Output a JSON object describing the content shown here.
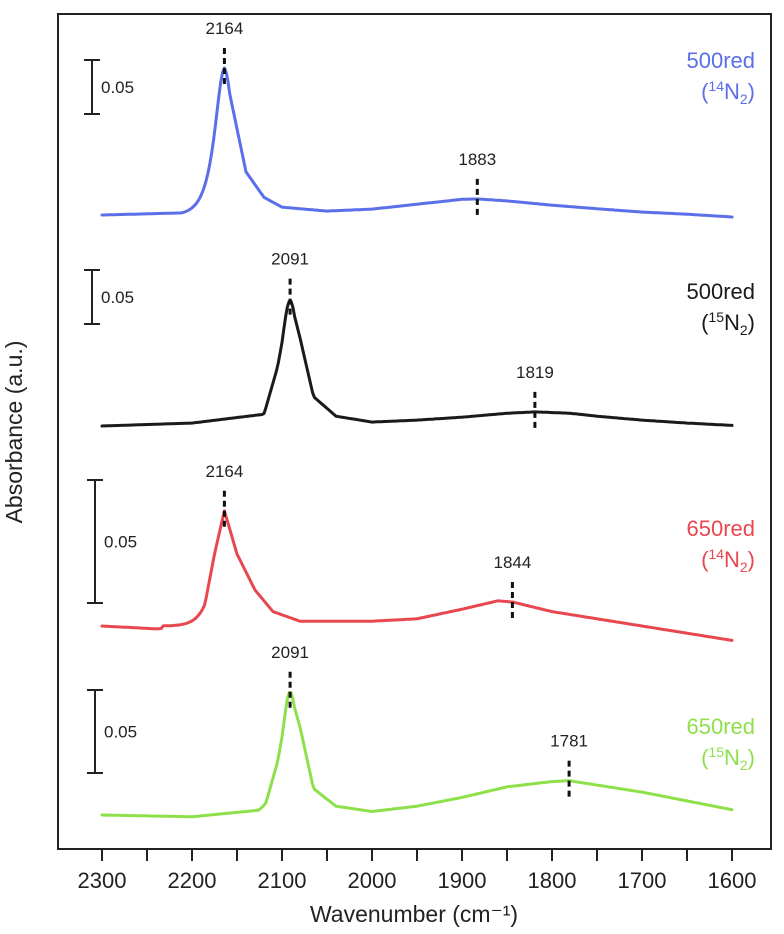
{
  "chart_data": {
    "type": "line",
    "xlabel": "Wavenumber (cm⁻¹)",
    "ylabel": "Absorbance (a.u.)",
    "xlim": [
      2350,
      1580
    ],
    "x_reversed": true,
    "x_ticks": [
      2300,
      2200,
      2100,
      2000,
      1900,
      1800,
      1700,
      1600
    ],
    "x_tick_labels": [
      "2300",
      "2200",
      "2100",
      "2000",
      "1900",
      "1800",
      "1700",
      "1600"
    ],
    "y_ticks_shown": false,
    "legend": "none (series names printed to the right of each trace)",
    "series": [
      {
        "name": "500red (14N2)",
        "name_main": "500red",
        "name_sub_open": "(",
        "name_sup": "14",
        "name_n": "N",
        "name_sub": "2",
        "name_sub_close": ")",
        "color": "#5a6fe8",
        "scale_bar_label": "0.05",
        "scale_bar_value": 0.05,
        "peaks": [
          {
            "x": 2164,
            "label": "2164",
            "height": 0.0745,
            "width": 14,
            "shape": 2.0
          },
          {
            "x": 1883,
            "label": "1883",
            "height": 0.008,
            "width": 85,
            "shape": 1.0
          }
        ],
        "points": [
          [
            2300,
            0.0
          ],
          [
            2200,
            0.0012
          ],
          [
            2184,
            0.01
          ],
          [
            2175,
            0.038
          ],
          [
            2164,
            0.075
          ],
          [
            2155,
            0.055
          ],
          [
            2140,
            0.022
          ],
          [
            2120,
            0.009
          ],
          [
            2100,
            0.004
          ],
          [
            2050,
            0.002
          ],
          [
            2000,
            0.003
          ],
          [
            1950,
            0.0055
          ],
          [
            1900,
            0.008
          ],
          [
            1883,
            0.0082
          ],
          [
            1850,
            0.0072
          ],
          [
            1800,
            0.005
          ],
          [
            1750,
            0.0032
          ],
          [
            1700,
            0.0015
          ],
          [
            1650,
            0.0004
          ],
          [
            1600,
            -0.001
          ]
        ]
      },
      {
        "name": "500red (15N2)",
        "name_main": "500red",
        "name_sub_open": "(",
        "name_sup": "15",
        "name_n": "N",
        "name_sub": "2",
        "name_sub_close": ")",
        "color": "#1a1a1a",
        "scale_bar_label": "0.05",
        "scale_bar_value": 0.05,
        "peaks": [
          {
            "x": 2091,
            "label": "2091",
            "height": 0.064,
            "width": 14,
            "shape": 2.0
          },
          {
            "x": 1819,
            "label": "1819",
            "height": 0.007,
            "width": 85,
            "shape": 1.0
          }
        ],
        "points": [
          [
            2300,
            0.0
          ],
          [
            2200,
            0.0015
          ],
          [
            2120,
            0.006
          ],
          [
            2105,
            0.03
          ],
          [
            2091,
            0.065
          ],
          [
            2080,
            0.045
          ],
          [
            2065,
            0.015
          ],
          [
            2040,
            0.005
          ],
          [
            2000,
            0.002
          ],
          [
            1950,
            0.003
          ],
          [
            1900,
            0.0045
          ],
          [
            1850,
            0.0065
          ],
          [
            1819,
            0.0072
          ],
          [
            1780,
            0.0065
          ],
          [
            1750,
            0.005
          ],
          [
            1700,
            0.003
          ],
          [
            1650,
            0.0015
          ],
          [
            1600,
            0.0003
          ]
        ]
      },
      {
        "name": "650red (14N2)",
        "name_main": "650red",
        "name_sub_open": "(",
        "name_sup": "14",
        "name_n": "N",
        "name_sub": "2",
        "name_sub_close": ")",
        "color": "#e8474f",
        "scale_bar_label": "0.05",
        "scale_bar_value": 0.05,
        "peaks": [
          {
            "x": 2164,
            "label": "2164",
            "height": 0.044,
            "width": 14,
            "shape": 2.0
          },
          {
            "x": 1844,
            "label": "1844",
            "height": 0.01,
            "width": 70,
            "shape": 1.0
          }
        ],
        "points": [
          [
            2300,
            0.0
          ],
          [
            2240,
            -0.0012
          ],
          [
            2190,
            0.0005
          ],
          [
            2175,
            0.03
          ],
          [
            2164,
            0.048
          ],
          [
            2150,
            0.03
          ],
          [
            2130,
            0.015
          ],
          [
            2110,
            0.006
          ],
          [
            2080,
            0.002
          ],
          [
            2000,
            0.002
          ],
          [
            1950,
            0.003
          ],
          [
            1900,
            0.007
          ],
          [
            1860,
            0.0105
          ],
          [
            1844,
            0.01
          ],
          [
            1800,
            0.006
          ],
          [
            1750,
            0.003
          ],
          [
            1700,
            0.0
          ],
          [
            1650,
            -0.003
          ],
          [
            1600,
            -0.006
          ]
        ]
      },
      {
        "name": "650red (15N2)",
        "name_main": "650red",
        "name_sub_open": "(",
        "name_sup": "15",
        "name_n": "N",
        "name_sub": "2",
        "name_sub_close": ")",
        "color": "#8ee04a",
        "scale_bar_label": "0.05",
        "scale_bar_value": 0.05,
        "peaks": [
          {
            "x": 2091,
            "label": "2091",
            "height": 0.07,
            "width": 13,
            "shape": 2.0
          },
          {
            "x": 1781,
            "label": "1781",
            "height": 0.02,
            "width": 70,
            "shape": 1.0
          }
        ],
        "points": [
          [
            2300,
            0.0
          ],
          [
            2200,
            -0.001
          ],
          [
            2120,
            0.003
          ],
          [
            2105,
            0.03
          ],
          [
            2091,
            0.07
          ],
          [
            2080,
            0.05
          ],
          [
            2065,
            0.015
          ],
          [
            2040,
            0.005
          ],
          [
            2000,
            0.002
          ],
          [
            1950,
            0.005
          ],
          [
            1900,
            0.01
          ],
          [
            1850,
            0.016
          ],
          [
            1800,
            0.019
          ],
          [
            1781,
            0.0195
          ],
          [
            1750,
            0.017
          ],
          [
            1700,
            0.013
          ],
          [
            1650,
            0.008
          ],
          [
            1600,
            0.003
          ]
        ]
      }
    ]
  }
}
